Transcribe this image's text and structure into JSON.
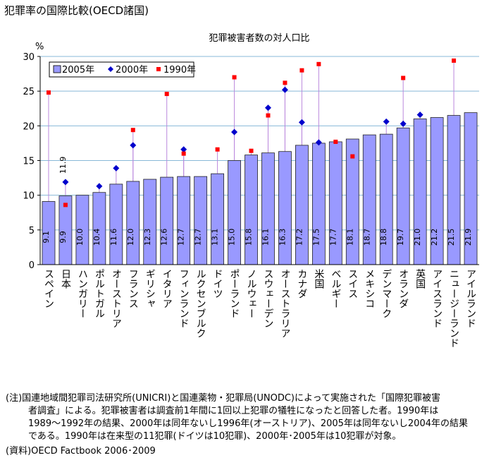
{
  "chart_data": {
    "type": "bar",
    "title": "犯罪率の国際比較(OECD諸国)",
    "subtitle": "犯罪被害者数の対人口比",
    "y_unit": "%",
    "categories": [
      "スペイン",
      "日本",
      "ハンガリー",
      "ポルトガル",
      "オーストリア",
      "フランス",
      "ギリシャ",
      "イタリア",
      "フィンランド",
      "ルクセンブルク",
      "ドイツ",
      "ポーランド",
      "ノルウェー",
      "スウェーデン",
      "オーストラリア",
      "カナダ",
      "米国",
      "ベルギー",
      "スイス",
      "メキシコ",
      "デンマーク",
      "オランダ",
      "英国",
      "アイスランド",
      "ニュージーランド",
      "アイルランド"
    ],
    "series": [
      {
        "name": "2005年",
        "color": "#9999ff",
        "marker": "bar",
        "values": [
          9.1,
          9.9,
          10.0,
          10.4,
          11.6,
          12.0,
          12.3,
          12.6,
          12.7,
          12.7,
          13.1,
          15.0,
          15.8,
          16.1,
          16.3,
          17.2,
          17.5,
          17.7,
          18.1,
          18.7,
          18.8,
          19.7,
          21.0,
          21.2,
          21.5,
          21.9
        ],
        "value_labels": [
          "9.1",
          "9.9",
          "10.0",
          "10.4",
          "11.6",
          "12.0",
          "12.3",
          "12.6",
          "12.7",
          "12.7",
          "13.1",
          "15.0",
          "15.8",
          "16.1",
          "16.3",
          "17.2",
          "17.5",
          "17.7",
          "18.1",
          "18.7",
          "18.8",
          "19.7",
          "21.0",
          "21.2",
          "21.5",
          "21.9"
        ]
      },
      {
        "name": "2000年",
        "color": "#0000cc",
        "marker": "diamond",
        "values": [
          null,
          11.9,
          null,
          11.3,
          13.9,
          17.2,
          null,
          null,
          16.6,
          null,
          null,
          19.1,
          null,
          22.6,
          25.2,
          20.5,
          17.6,
          null,
          null,
          null,
          20.6,
          20.3,
          21.6,
          null,
          null,
          null
        ],
        "value_labels": [
          null,
          "11.9",
          null,
          null,
          null,
          null,
          null,
          null,
          null,
          null,
          null,
          null,
          null,
          null,
          null,
          null,
          null,
          null,
          null,
          null,
          null,
          null,
          null,
          null,
          null,
          null
        ]
      },
      {
        "name": "1990年",
        "color": "#ff0000",
        "marker": "square",
        "values": [
          24.8,
          8.6,
          null,
          null,
          null,
          19.4,
          null,
          24.6,
          16.0,
          null,
          16.6,
          27.0,
          16.4,
          21.5,
          26.2,
          28.0,
          28.9,
          17.7,
          15.6,
          null,
          null,
          26.9,
          null,
          null,
          29.4,
          null
        ]
      }
    ],
    "ylim": [
      0,
      30
    ],
    "yticks": [
      0,
      5,
      10,
      15,
      20,
      25,
      30
    ],
    "grid": true,
    "notes": [
      "(注)国連地域間犯罪司法研究所(UNICRI)と国連薬物・犯罪局(UNODC)によって実施された「国際犯罪被害",
      "者調査」による。犯罪被害者は調査前1年間に1回以上犯罪の犠牲になったと回答した者。1990年は",
      "1989～1992年の結果、2000年は同年ないし1996年(オーストリア)、2005年は同年ないし2004年の結果",
      "である。1990年は在来型の11犯罪(ドイツは10犯罪)、2000年･2005年は10犯罪が対象。"
    ],
    "source": "(資料)OECD Factbook 2006･2009"
  }
}
